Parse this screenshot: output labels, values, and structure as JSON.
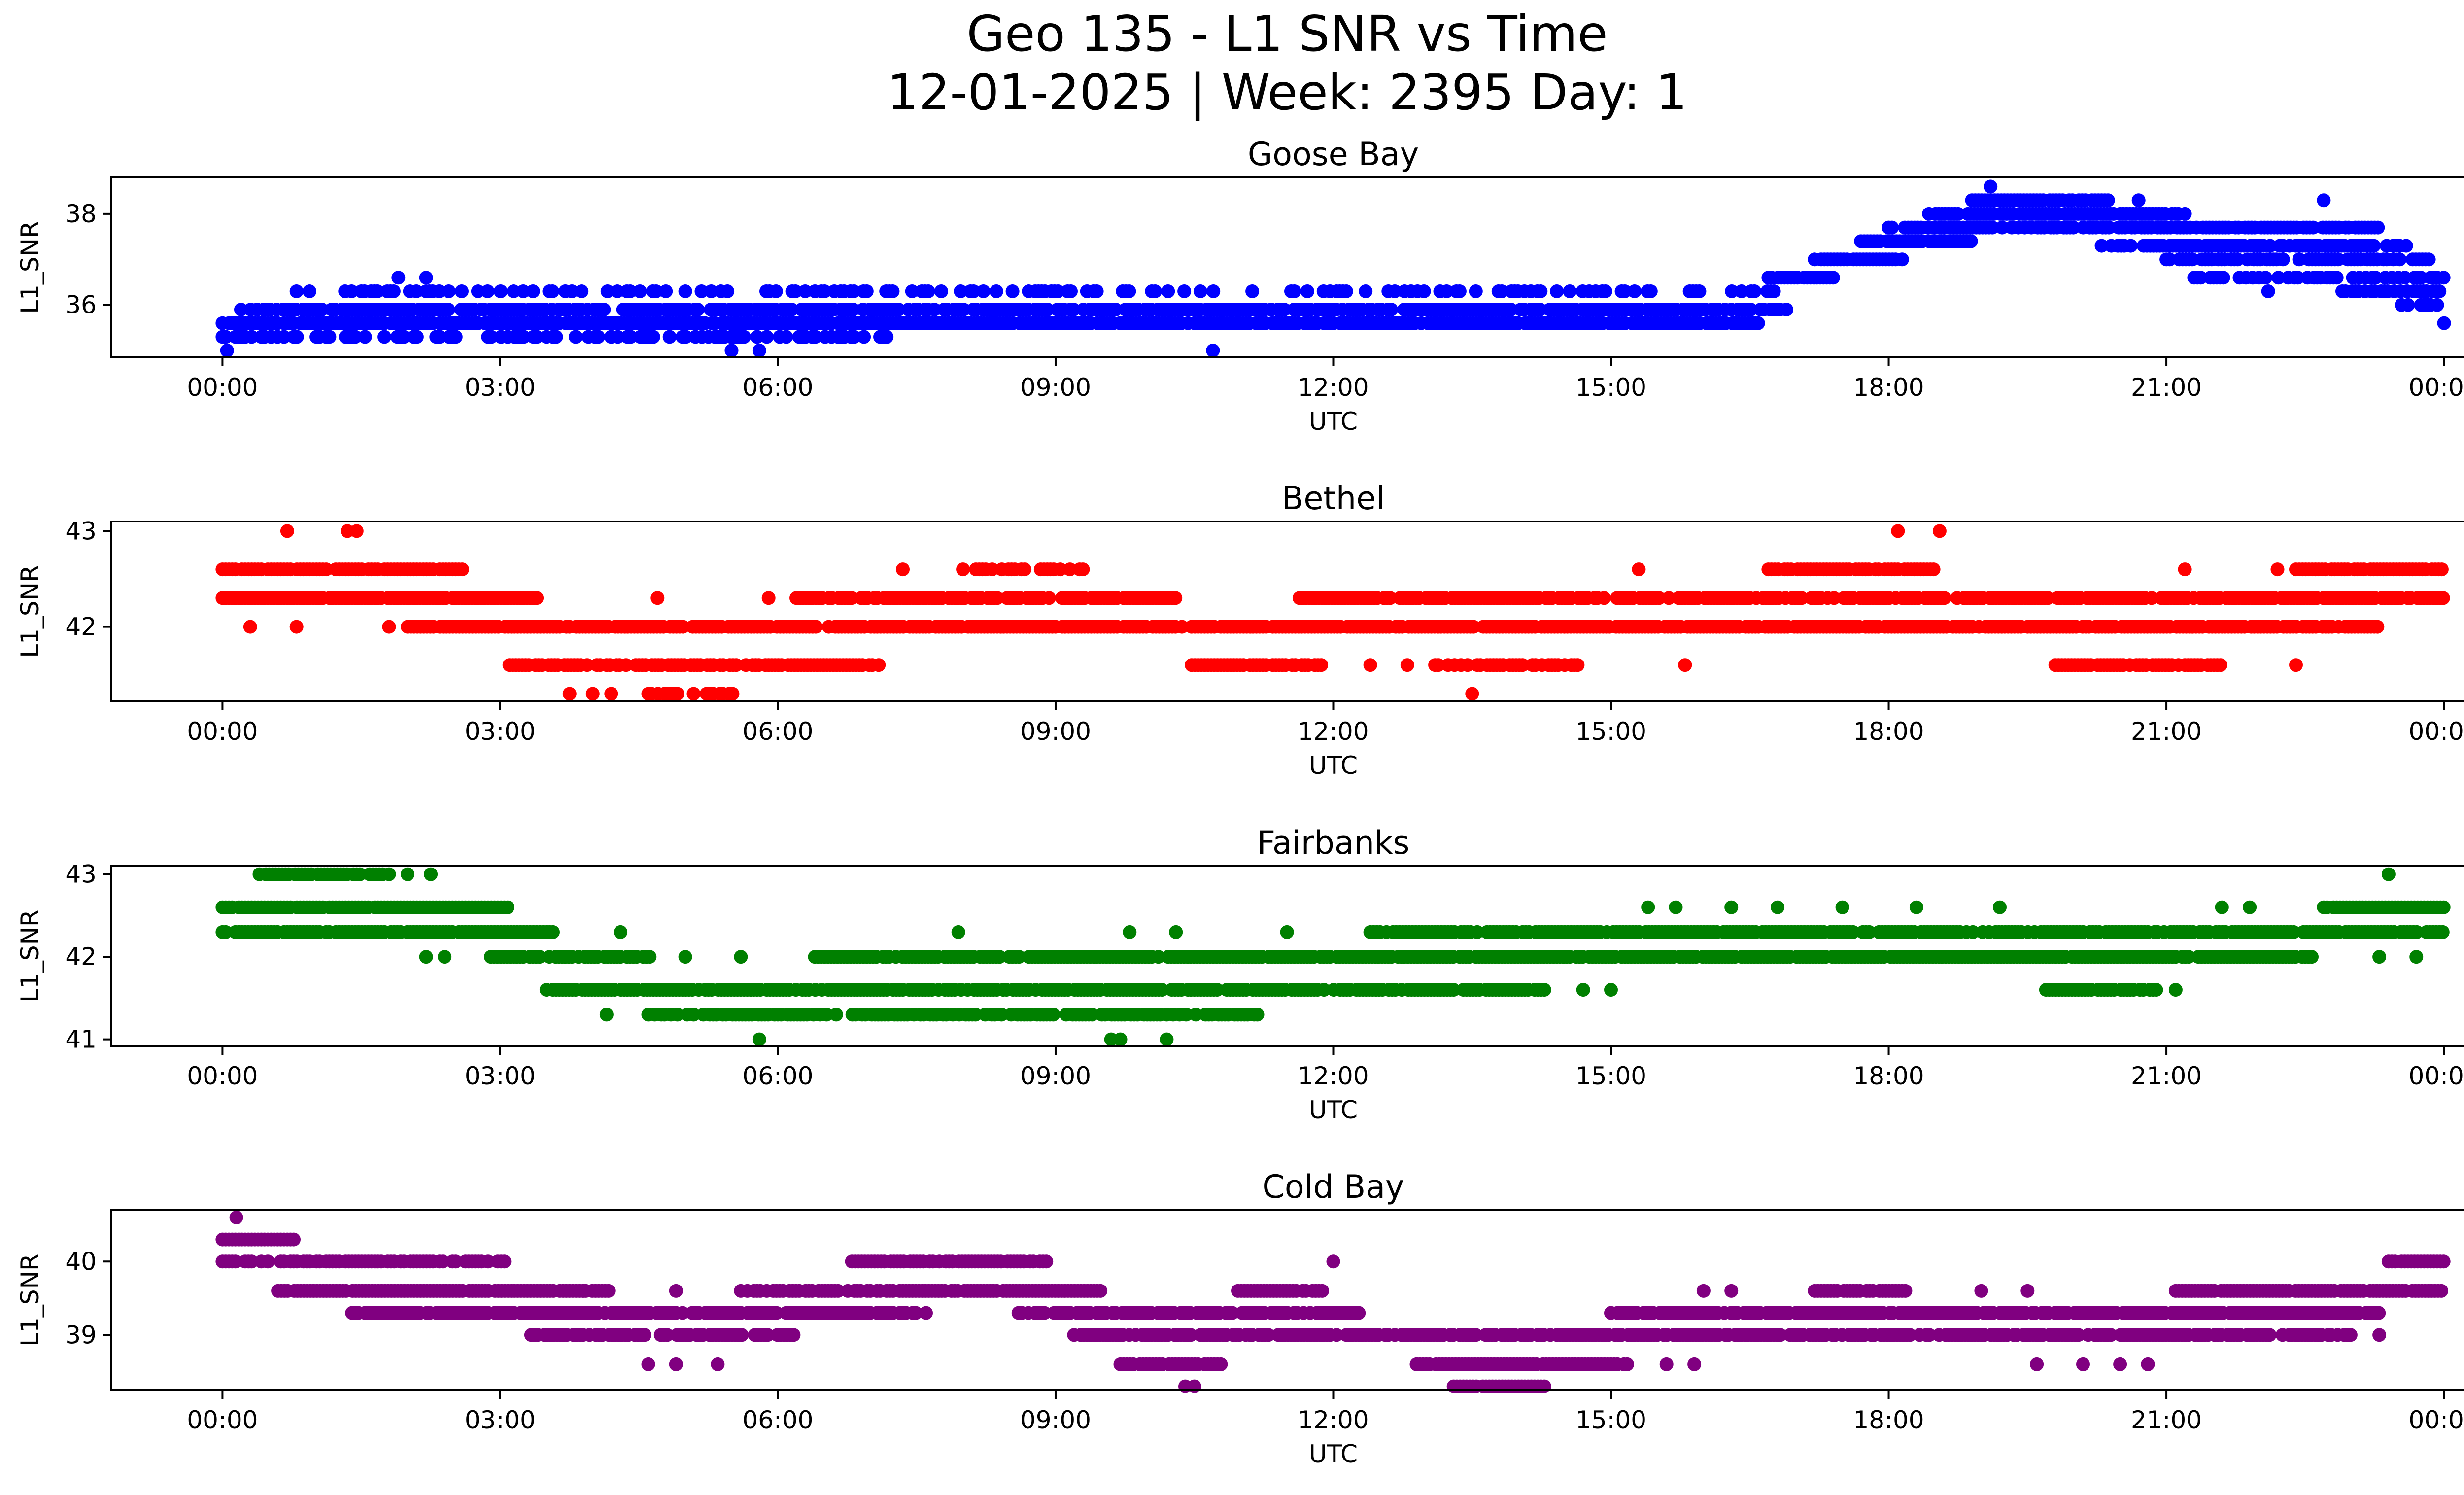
{
  "figure": {
    "title_line1": "Geo 135 - L1 SNR vs Time",
    "title_line2": "12-01-2025 | Week: 2395 Day: 1"
  },
  "x_axis": {
    "label": "UTC",
    "ticks": [
      {
        "hour": 0,
        "label": "00:00"
      },
      {
        "hour": 3,
        "label": "03:00"
      },
      {
        "hour": 6,
        "label": "06:00"
      },
      {
        "hour": 9,
        "label": "09:00"
      },
      {
        "hour": 12,
        "label": "12:00"
      },
      {
        "hour": 15,
        "label": "15:00"
      },
      {
        "hour": 18,
        "label": "18:00"
      },
      {
        "hour": 21,
        "label": "21:00"
      },
      {
        "hour": 24,
        "label": "00:00"
      }
    ],
    "xlim": [
      -1.2,
      25.2
    ]
  },
  "chart_data": [
    {
      "type": "scatter",
      "title": "Goose Bay",
      "color": "#0000ff",
      "xlabel": "UTC",
      "ylabel": "L1_SNR",
      "ylim": [
        34.85,
        38.8
      ],
      "yticks": [
        36,
        38
      ],
      "x_units": "hours UTC",
      "series": [
        {
          "name": "L1_SNR",
          "bands": [
            {
              "y": 35.6,
              "from": 0.0,
              "to": 16.6,
              "density": 0.95
            },
            {
              "y": 35.9,
              "from": 0.2,
              "to": 16.9,
              "density": 0.85
            },
            {
              "y": 36.3,
              "from": 0.8,
              "to": 17.0,
              "density": 0.35
            },
            {
              "y": 35.3,
              "from": 0.0,
              "to": 7.2,
              "density": 0.45
            },
            {
              "y": 36.6,
              "from": 16.7,
              "to": 17.4,
              "density": 0.9
            },
            {
              "y": 37.0,
              "from": 17.2,
              "to": 18.2,
              "density": 0.9
            },
            {
              "y": 37.4,
              "from": 17.7,
              "to": 18.9,
              "density": 0.9
            },
            {
              "y": 37.7,
              "from": 18.0,
              "to": 23.3,
              "density": 0.75
            },
            {
              "y": 38.0,
              "from": 18.4,
              "to": 21.2,
              "density": 0.85
            },
            {
              "y": 38.3,
              "from": 18.9,
              "to": 20.4,
              "density": 0.9
            },
            {
              "y": 37.3,
              "from": 20.3,
              "to": 23.6,
              "density": 0.7
            },
            {
              "y": 37.0,
              "from": 21.0,
              "to": 23.9,
              "density": 0.7
            },
            {
              "y": 36.6,
              "from": 21.3,
              "to": 24.0,
              "density": 0.5
            },
            {
              "y": 36.3,
              "from": 22.9,
              "to": 24.0,
              "density": 0.6
            },
            {
              "y": 36.0,
              "from": 23.4,
              "to": 24.0,
              "density": 0.5
            }
          ],
          "extra_points": [
            [
              0.05,
              35.0
            ],
            [
              1.9,
              36.6
            ],
            [
              2.2,
              36.6
            ],
            [
              5.5,
              35.0
            ],
            [
              5.8,
              35.0
            ],
            [
              10.7,
              35.0
            ],
            [
              19.1,
              38.6
            ],
            [
              20.7,
              38.3
            ],
            [
              22.7,
              38.3
            ],
            [
              22.1,
              36.3
            ],
            [
              24.0,
              35.6
            ]
          ]
        }
      ]
    },
    {
      "type": "scatter",
      "title": "Bethel",
      "color": "#ff0000",
      "xlabel": "UTC",
      "ylabel": "L1_SNR",
      "ylim": [
        41.22,
        43.1
      ],
      "yticks": [
        42,
        43
      ],
      "x_units": "hours UTC",
      "series": [
        {
          "name": "L1_SNR",
          "bands": [
            {
              "y": 42.0,
              "from": 2.0,
              "to": 23.3,
              "density": 0.92
            },
            {
              "y": 42.3,
              "from": 0.0,
              "to": 3.4,
              "density": 0.95
            },
            {
              "y": 42.3,
              "from": 6.2,
              "to": 10.3,
              "density": 0.85
            },
            {
              "y": 42.3,
              "from": 11.6,
              "to": 24.0,
              "density": 0.85
            },
            {
              "y": 42.6,
              "from": 0.0,
              "to": 2.6,
              "density": 0.95
            },
            {
              "y": 42.6,
              "from": 8.0,
              "to": 9.3,
              "density": 0.5
            },
            {
              "y": 42.6,
              "from": 16.7,
              "to": 18.5,
              "density": 0.85
            },
            {
              "y": 42.6,
              "from": 22.4,
              "to": 24.0,
              "density": 0.85
            },
            {
              "y": 41.6,
              "from": 3.1,
              "to": 7.1,
              "density": 0.85
            },
            {
              "y": 41.6,
              "from": 10.4,
              "to": 11.9,
              "density": 0.8
            },
            {
              "y": 41.6,
              "from": 13.1,
              "to": 14.7,
              "density": 0.7
            },
            {
              "y": 41.6,
              "from": 19.8,
              "to": 21.6,
              "density": 0.85
            },
            {
              "y": 41.3,
              "from": 4.6,
              "to": 5.6,
              "density": 0.6
            }
          ],
          "extra_points": [
            [
              0.7,
              43.0
            ],
            [
              1.35,
              43.0
            ],
            [
              1.45,
              43.0
            ],
            [
              18.1,
              43.0
            ],
            [
              18.55,
              43.0
            ],
            [
              0.3,
              42.0
            ],
            [
              0.8,
              42.0
            ],
            [
              1.8,
              42.0
            ],
            [
              4.7,
              42.3
            ],
            [
              5.9,
              42.3
            ],
            [
              7.35,
              42.6
            ],
            [
              15.3,
              42.6
            ],
            [
              21.2,
              42.6
            ],
            [
              22.2,
              42.6
            ],
            [
              12.4,
              41.6
            ],
            [
              12.8,
              41.6
            ],
            [
              15.8,
              41.6
            ],
            [
              3.75,
              41.3
            ],
            [
              4.0,
              41.3
            ],
            [
              4.2,
              41.3
            ],
            [
              13.5,
              41.3
            ],
            [
              22.4,
              41.6
            ]
          ]
        }
      ]
    },
    {
      "type": "scatter",
      "title": "Fairbanks",
      "color": "#008000",
      "xlabel": "UTC",
      "ylabel": "L1_SNR",
      "ylim": [
        40.92,
        43.1
      ],
      "yticks": [
        41,
        42,
        43
      ],
      "x_units": "hours UTC",
      "series": [
        {
          "name": "L1_SNR",
          "bands": [
            {
              "y": 42.3,
              "from": 0.0,
              "to": 3.6,
              "density": 0.9
            },
            {
              "y": 42.3,
              "from": 12.4,
              "to": 24.0,
              "density": 0.85
            },
            {
              "y": 42.6,
              "from": 0.0,
              "to": 3.1,
              "density": 0.95
            },
            {
              "y": 42.6,
              "from": 22.7,
              "to": 24.0,
              "density": 0.95
            },
            {
              "y": 42.0,
              "from": 2.9,
              "to": 4.7,
              "density": 0.85
            },
            {
              "y": 42.0,
              "from": 6.4,
              "to": 22.6,
              "density": 0.92
            },
            {
              "y": 41.6,
              "from": 3.5,
              "to": 14.3,
              "density": 0.88
            },
            {
              "y": 41.6,
              "from": 19.7,
              "to": 20.9,
              "density": 0.85
            },
            {
              "y": 41.3,
              "from": 4.6,
              "to": 11.2,
              "density": 0.65
            },
            {
              "y": 43.0,
              "from": 0.4,
              "to": 1.8,
              "density": 0.9
            }
          ],
          "extra_points": [
            [
              2.0,
              43.0
            ],
            [
              2.25,
              43.0
            ],
            [
              23.4,
              43.0
            ],
            [
              15.4,
              42.6
            ],
            [
              15.7,
              42.6
            ],
            [
              16.3,
              42.6
            ],
            [
              16.8,
              42.6
            ],
            [
              17.5,
              42.6
            ],
            [
              18.3,
              42.6
            ],
            [
              19.2,
              42.6
            ],
            [
              21.6,
              42.6
            ],
            [
              21.9,
              42.6
            ],
            [
              4.3,
              42.3
            ],
            [
              7.95,
              42.3
            ],
            [
              9.8,
              42.3
            ],
            [
              10.3,
              42.3
            ],
            [
              11.5,
              42.3
            ],
            [
              2.2,
              42.0
            ],
            [
              2.4,
              42.0
            ],
            [
              5.0,
              42.0
            ],
            [
              5.6,
              42.0
            ],
            [
              23.3,
              42.0
            ],
            [
              23.7,
              42.0
            ],
            [
              4.15,
              41.3
            ],
            [
              14.7,
              41.6
            ],
            [
              15.0,
              41.6
            ],
            [
              21.1,
              41.6
            ],
            [
              5.8,
              41.0
            ],
            [
              9.6,
              41.0
            ],
            [
              9.7,
              41.0
            ],
            [
              10.2,
              41.0
            ]
          ]
        }
      ]
    },
    {
      "type": "scatter",
      "title": "Cold Bay",
      "color": "#800080",
      "xlabel": "UTC",
      "ylabel": "L1_SNR",
      "ylim": [
        38.25,
        40.7
      ],
      "yticks": [
        39,
        40
      ],
      "x_units": "hours UTC",
      "series": [
        {
          "name": "L1_SNR",
          "bands": [
            {
              "y": 40.3,
              "from": 0.0,
              "to": 0.8,
              "density": 0.95
            },
            {
              "y": 40.0,
              "from": 0.0,
              "to": 3.1,
              "density": 0.7
            },
            {
              "y": 40.0,
              "from": 6.8,
              "to": 8.9,
              "density": 0.8
            },
            {
              "y": 40.0,
              "from": 23.4,
              "to": 24.0,
              "density": 0.9
            },
            {
              "y": 39.6,
              "from": 0.6,
              "to": 4.2,
              "density": 0.9
            },
            {
              "y": 39.6,
              "from": 5.6,
              "to": 9.5,
              "density": 0.85
            },
            {
              "y": 39.6,
              "from": 10.9,
              "to": 11.9,
              "density": 0.85
            },
            {
              "y": 39.6,
              "from": 17.2,
              "to": 18.2,
              "density": 0.85
            },
            {
              "y": 39.6,
              "from": 21.1,
              "to": 24.0,
              "density": 0.9
            },
            {
              "y": 39.3,
              "from": 1.4,
              "to": 7.5,
              "density": 0.88
            },
            {
              "y": 39.3,
              "from": 8.6,
              "to": 12.3,
              "density": 0.85
            },
            {
              "y": 39.3,
              "from": 15.0,
              "to": 23.3,
              "density": 0.9
            },
            {
              "y": 39.0,
              "from": 3.3,
              "to": 6.2,
              "density": 0.75
            },
            {
              "y": 39.0,
              "from": 9.2,
              "to": 23.0,
              "density": 0.85
            },
            {
              "y": 38.6,
              "from": 9.7,
              "to": 10.8,
              "density": 0.85
            },
            {
              "y": 38.6,
              "from": 12.9,
              "to": 15.2,
              "density": 0.9
            },
            {
              "y": 38.3,
              "from": 13.3,
              "to": 14.3,
              "density": 0.9
            }
          ],
          "extra_points": [
            [
              0.15,
              40.6
            ],
            [
              12.0,
              40.0
            ],
            [
              4.6,
              38.6
            ],
            [
              4.9,
              38.6
            ],
            [
              5.35,
              38.6
            ],
            [
              15.6,
              38.6
            ],
            [
              15.9,
              38.6
            ],
            [
              19.6,
              38.6
            ],
            [
              20.1,
              38.6
            ],
            [
              20.5,
              38.6
            ],
            [
              20.8,
              38.6
            ],
            [
              10.4,
              38.3
            ],
            [
              10.5,
              38.3
            ],
            [
              3.9,
              39.6
            ],
            [
              4.9,
              39.6
            ],
            [
              16.0,
              39.6
            ],
            [
              16.3,
              39.6
            ],
            [
              19.0,
              39.6
            ],
            [
              19.5,
              39.6
            ],
            [
              7.6,
              39.3
            ],
            [
              23.3,
              39.0
            ],
            [
              12.9,
              38.6
            ],
            [
              11.1,
              39.0
            ]
          ]
        }
      ]
    }
  ]
}
